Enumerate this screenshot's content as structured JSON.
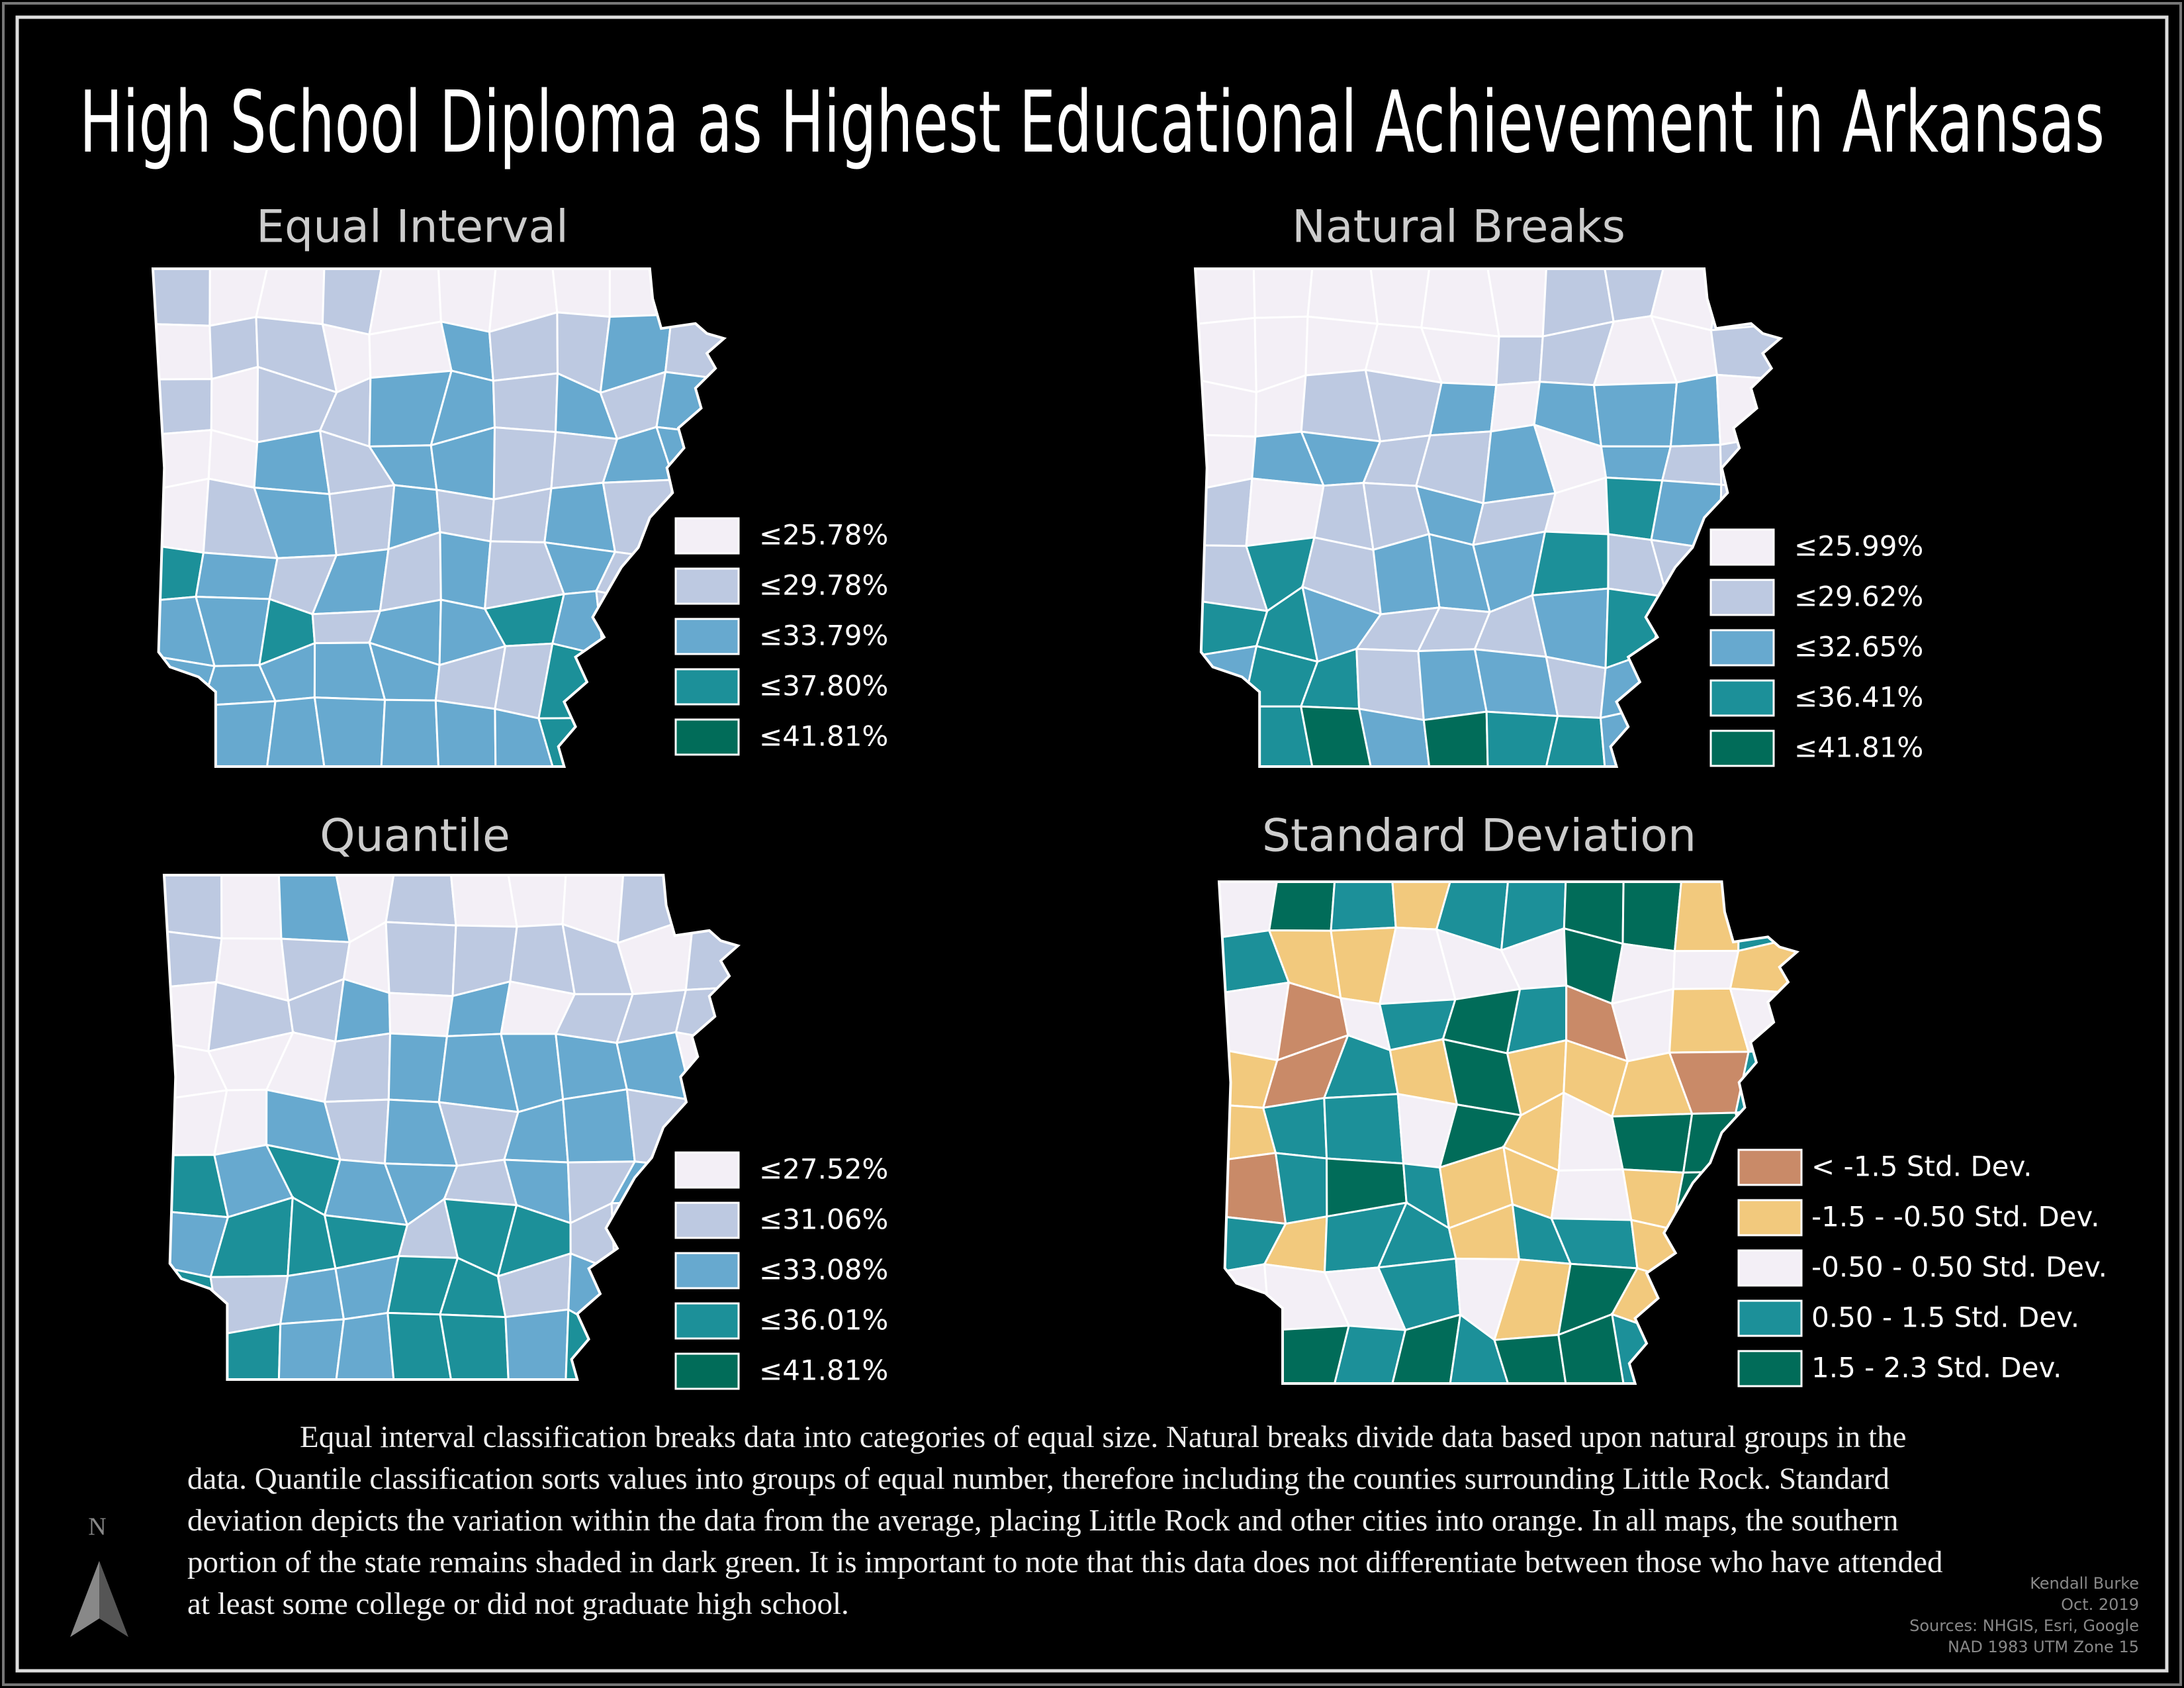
{
  "title": "High School Diploma as Highest Educational Achievement in Arkansas",
  "maps": [
    {
      "title": "Equal Interval",
      "legend": [
        {
          "label": "≤25.78%",
          "color": "#f3eff6"
        },
        {
          "label": "≤29.78%",
          "color": "#bdc9e1"
        },
        {
          "label": "≤33.79%",
          "color": "#67a9cf"
        },
        {
          "label": "≤37.80%",
          "color": "#1c9099"
        },
        {
          "label": "≤41.81%",
          "color": "#016c59"
        }
      ]
    },
    {
      "title": "Natural Breaks",
      "legend": [
        {
          "label": "≤25.99%",
          "color": "#f3eff6"
        },
        {
          "label": "≤29.62%",
          "color": "#bdc9e1"
        },
        {
          "label": "≤32.65%",
          "color": "#67a9cf"
        },
        {
          "label": "≤36.41%",
          "color": "#1c9099"
        },
        {
          "label": "≤41.81%",
          "color": "#016c59"
        }
      ]
    },
    {
      "title": "Quantile",
      "legend": [
        {
          "label": "≤27.52%",
          "color": "#f3eff6"
        },
        {
          "label": "≤31.06%",
          "color": "#bdc9e1"
        },
        {
          "label": "≤33.08%",
          "color": "#67a9cf"
        },
        {
          "label": "≤36.01%",
          "color": "#1c9099"
        },
        {
          "label": "≤41.81%",
          "color": "#016c59"
        }
      ]
    },
    {
      "title": "Standard Deviation",
      "legend": [
        {
          "label": "< -1.5 Std. Dev.",
          "color": "#c98a68"
        },
        {
          "label": "-1.5 - -0.50 Std. Dev.",
          "color": "#f2c97d"
        },
        {
          "label": "-0.50 - 0.50 Std. Dev.",
          "color": "#f3eff6"
        },
        {
          "label": "0.50 - 1.5 Std. Dev.",
          "color": "#1c9099"
        },
        {
          "label": "1.5 - 2.3 Std. Dev.",
          "color": "#016c59"
        }
      ]
    }
  ],
  "description": "Equal interval classification breaks data into categories of equal size. Natural breaks divide data based upon natural groups in the data. Quantile classification sorts values into groups of equal number, therefore including the counties surrounding Little Rock. Standard deviation depicts the variation within the data from the average, placing Little Rock and other cities into orange. In all maps, the southern portion of the state remains shaded in dark green. It is important to note that this data does not differentiate between those who have attended at least some college or did not graduate high school.",
  "north_label": "N",
  "credits": [
    "Kendall Burke",
    "Oct. 2019",
    "Sources: NHGIS, Esri, Google",
    "NAD 1983 UTM Zone 15"
  ]
}
